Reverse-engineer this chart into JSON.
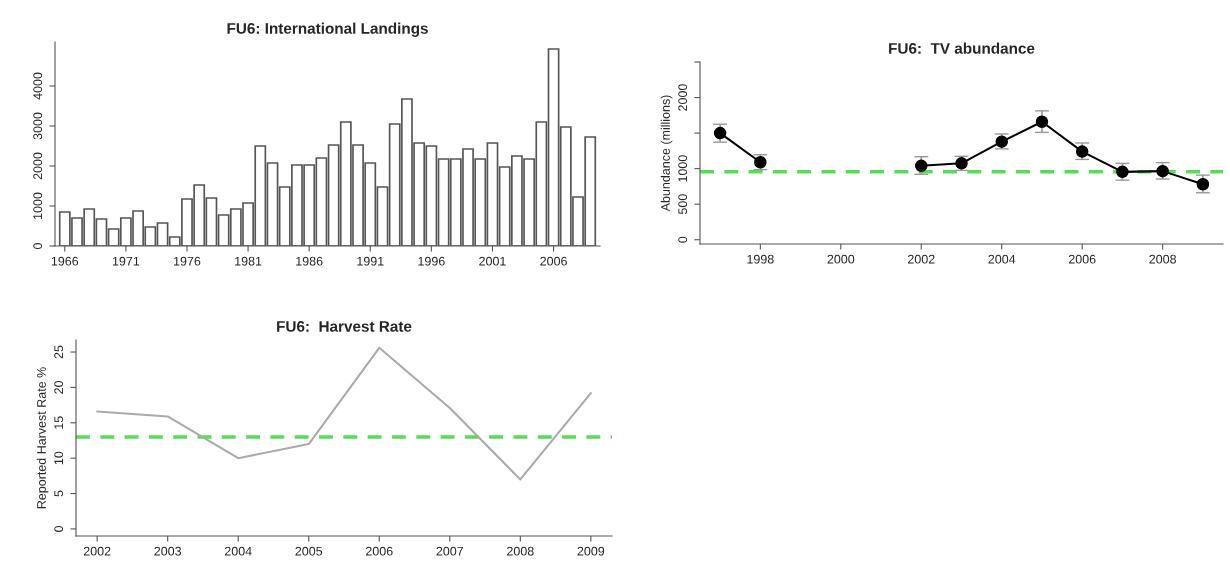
{
  "chart_data": [
    {
      "type": "bar",
      "title": "FU6: International Landings",
      "categories": [
        "1966",
        null,
        null,
        null,
        null,
        "1971",
        null,
        null,
        null,
        null,
        "1976",
        null,
        null,
        null,
        null,
        "1981",
        null,
        null,
        null,
        null,
        "1986",
        null,
        null,
        null,
        null,
        "1991",
        null,
        null,
        null,
        null,
        "1996",
        null,
        null,
        null,
        null,
        "2001",
        null,
        null,
        null,
        null,
        "2006",
        null,
        null,
        null
      ],
      "series": [
        {
          "color": "#ffffff",
          "values": [
            850,
            700,
            925,
            675,
            425,
            700,
            875,
            475,
            575,
            225,
            1175,
            1525,
            1200,
            775,
            925,
            1075,
            2500,
            2075,
            1475,
            2025,
            2025,
            2200,
            2525,
            3100,
            2525,
            2075,
            1475,
            3050,
            3675,
            2575,
            2500,
            2175,
            2175,
            2425,
            2175,
            2575,
            1975,
            2250,
            2175,
            3100,
            4925,
            2975,
            1225,
            2725
          ]
        }
      ],
      "ylim": [
        0,
        5100
      ],
      "yticks": [
        0,
        1000,
        2000,
        3000,
        4000
      ],
      "grid": false
    },
    {
      "type": "line",
      "title": "FU6:  TV abundance",
      "ylabel": "Abundance (millions)",
      "series": [
        {
          "color": "#000000",
          "marker": "circle",
          "x": [
            1997,
            1998,
            1999,
            2002,
            2003,
            2004,
            2005,
            2006,
            2007,
            2008,
            2009
          ],
          "values": [
            1500,
            1090,
            null,
            1040,
            1075,
            1380,
            1660,
            1240,
            955,
            965,
            780
          ],
          "errors": [
            [
              1372,
              1625
            ],
            [
              986,
              1196
            ],
            null,
            [
              920,
              1168
            ],
            [
              975,
              1174
            ],
            [
              1278,
              1488
            ],
            [
              1510,
              1813
            ],
            [
              1130,
              1361
            ],
            [
              838,
              1074
            ],
            [
              854,
              1085
            ],
            [
              661,
              909
            ]
          ]
        }
      ],
      "xlim": [
        1996.5,
        2009.5
      ],
      "xticks": [
        1998,
        2000,
        2002,
        2004,
        2006,
        2008
      ],
      "ylim": [
        -60,
        2500
      ],
      "yticks": [
        0,
        500,
        1000,
        {
          "value": 1500,
          "label": null
        },
        2000,
        {
          "value": 2500,
          "label": null
        }
      ],
      "ref_lines": [
        {
          "axis": "y",
          "value": 955,
          "color": "#55dd55",
          "line_style": "dashed"
        }
      ],
      "grid": false
    },
    {
      "type": "line",
      "title": "FU6:  Harvest Rate",
      "ylabel": "Reported Harvest Rate %",
      "series": [
        {
          "color": "#aaaaaa",
          "x": [
            2002,
            2003,
            2004,
            2005,
            2006,
            2007,
            2008,
            2009
          ],
          "values": [
            16.6,
            15.9,
            10.0,
            12.0,
            25.6,
            17.1,
            7.0,
            19.2
          ]
        }
      ],
      "xlim": [
        2001.7,
        2009.3
      ],
      "xticks": [
        2002,
        2003,
        2004,
        2005,
        2006,
        2007,
        2008,
        2009
      ],
      "ylim": [
        -1,
        26.7
      ],
      "yticks": [
        0,
        5,
        10,
        15,
        20,
        25
      ],
      "ref_lines": [
        {
          "axis": "y",
          "value": 13,
          "color": "#55dd55",
          "line_style": "dashed"
        }
      ],
      "grid": false
    }
  ]
}
